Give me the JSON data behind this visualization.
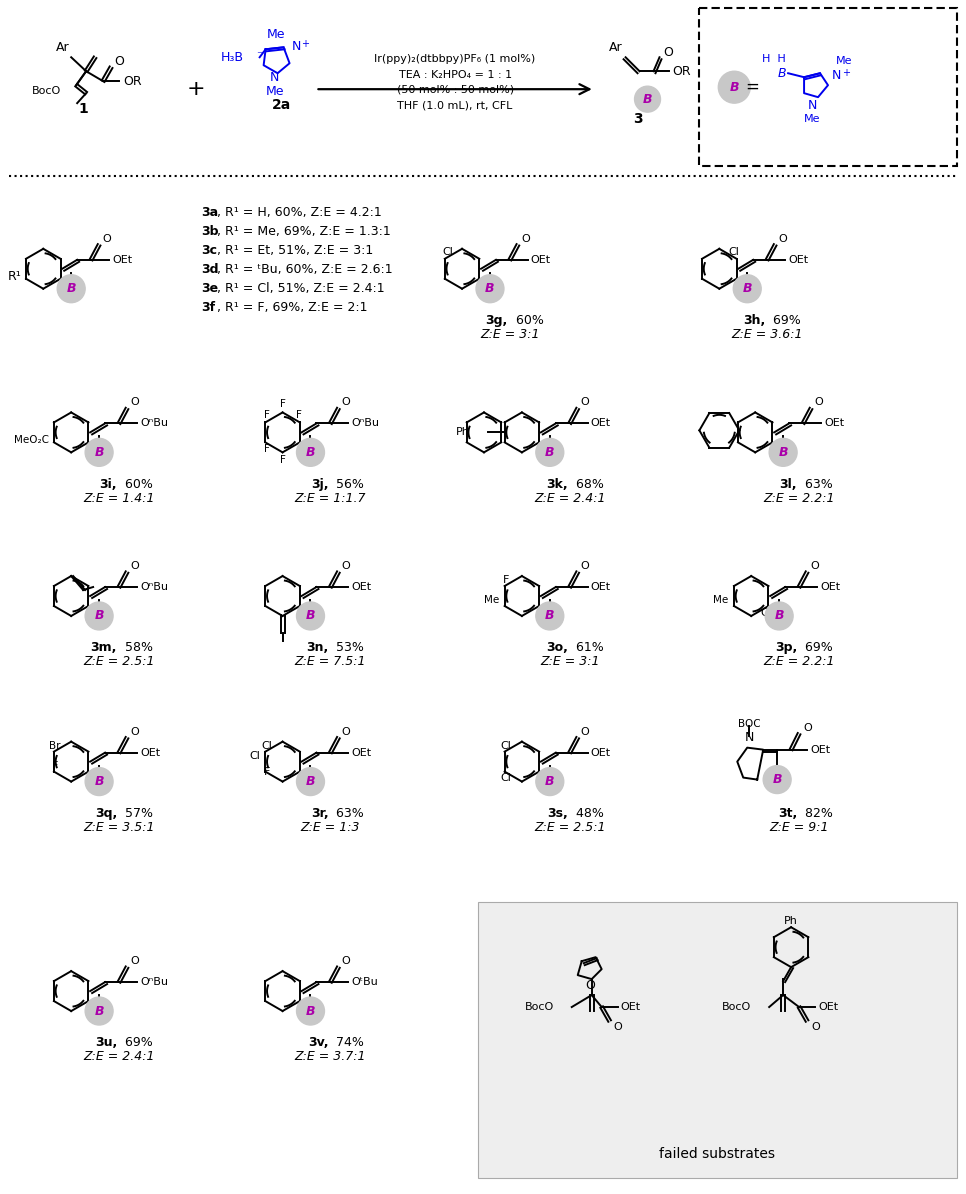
{
  "bg": "#ffffff",
  "fig_w": 9.66,
  "fig_h": 11.94,
  "dpi": 100,
  "blue": "#0000ee",
  "purple": "#aa00aa",
  "grey_circle": "#c8c8c8",
  "reagent_line1": "Ir(ppy)₂(dtbbpy)PF₆ (1 mol%)",
  "reagent_line2": "TEA : K₂HPO₄ = 1 : 1",
  "reagent_line3": "(50 mol% : 50 mol%)",
  "reagent_line4": "THF (1.0 mL), rt, CFL",
  "labels_3af": [
    [
      "3a",
      ", R¹ = H, 60%, Z:E = 4.2:1"
    ],
    [
      "3b",
      ", R¹ = Me, 69%, Z:E = 1.3:1"
    ],
    [
      "3c",
      ", R¹ = Et, 51%, Z:E = 3:1"
    ],
    [
      "3d",
      ", R¹ = ᵗBu, 60%, Z:E = 2.6:1"
    ],
    [
      "3e",
      ", R¹ = Cl, 51%, Z:E = 2.4:1"
    ],
    [
      "3f",
      ", R¹ = F, 69%, Z:E = 2:1"
    ]
  ],
  "compound_labels": {
    "3g": [
      "3g",
      "60%",
      "Z:E = 3:1"
    ],
    "3h": [
      "3h",
      "69%",
      "Z:E = 3.6:1"
    ],
    "3i": [
      "3i",
      "60%",
      "Z:E = 1.4:1"
    ],
    "3j": [
      "3j",
      "56%",
      "Z:E = 1:1.7"
    ],
    "3k": [
      "3k",
      "68%",
      "Z:E = 2.4:1"
    ],
    "3l": [
      "3l",
      "63%",
      "Z:E = 2.2:1"
    ],
    "3m": [
      "3m",
      "58%",
      "Z:E = 2.5:1"
    ],
    "3n": [
      "3n",
      "53%",
      "Z:E = 7.5:1"
    ],
    "3o": [
      "3o",
      "61%",
      "Z:E = 3:1"
    ],
    "3p": [
      "3p",
      "69%",
      "Z:E = 2.2:1"
    ],
    "3q": [
      "3q",
      "57%",
      "Z:E = 3.5:1"
    ],
    "3r": [
      "3r",
      "63%",
      "Z:E = 1:3"
    ],
    "3s": [
      "3s",
      "48%",
      "Z:E = 2.5:1"
    ],
    "3t": [
      "3t",
      "82%",
      "Z:E = 9:1"
    ],
    "3u": [
      "3u",
      "69%",
      "Z:E = 2.4:1"
    ],
    "3v": [
      "3v",
      "74%",
      "Z:E = 3.7:1"
    ]
  }
}
